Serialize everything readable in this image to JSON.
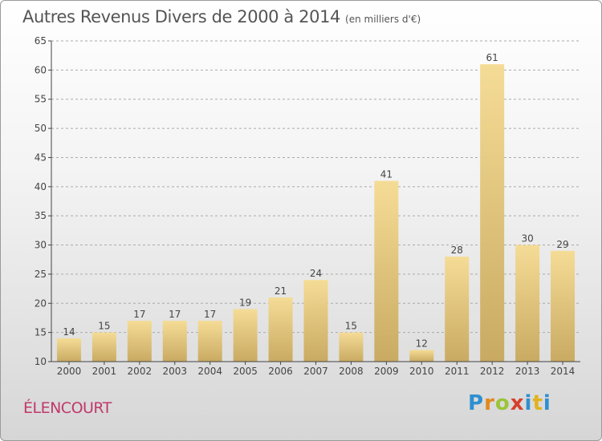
{
  "title": "Autres Revenus Divers de 2000 à 2014",
  "subtitle": "(en milliers d'€)",
  "place": "ÉLENCOURT",
  "logo": {
    "text": "Proxiti"
  },
  "colors": {
    "bar_light": "#f5dc96",
    "bar_dark": "#c9aa62",
    "axis": "#444444",
    "grid": "#aaaaaa"
  },
  "chart_data": {
    "type": "bar",
    "title": "Autres Revenus Divers de 2000 à 2014",
    "subtitle": "(en milliers d'€)",
    "categories": [
      "2000",
      "2001",
      "2002",
      "2003",
      "2004",
      "2005",
      "2006",
      "2007",
      "2008",
      "2009",
      "2010",
      "2011",
      "2012",
      "2013",
      "2014"
    ],
    "values": [
      14,
      15,
      17,
      17,
      17,
      19,
      21,
      24,
      15,
      41,
      12,
      28,
      61,
      30,
      29
    ],
    "ylim": [
      10,
      65
    ],
    "yticks": [
      10,
      15,
      20,
      25,
      30,
      35,
      40,
      45,
      50,
      55,
      60,
      65
    ],
    "grid": true,
    "xlabel": "",
    "ylabel": ""
  }
}
